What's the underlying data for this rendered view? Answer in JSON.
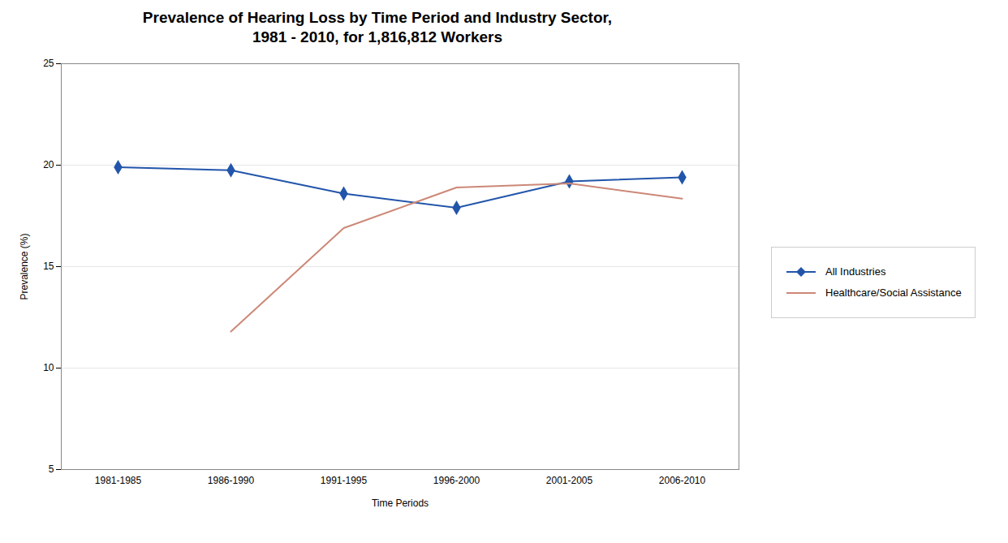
{
  "chart_data": {
    "type": "line",
    "title": "Prevalence of Hearing Loss by Time Period and Industry Sector,\n1981 - 2010, for 1,816,812 Workers",
    "x_label": "Time Periods",
    "y_label": "Prevalence (%)",
    "categories": [
      "1981-1985",
      "1986-1990",
      "1991-1995",
      "1996-2000",
      "2001-2005",
      "2006-2010"
    ],
    "series": [
      {
        "name": "All Industries",
        "color": "#2255AA",
        "marker": "diamond",
        "values": [
          19.9,
          19.75,
          18.6,
          17.9,
          19.2,
          19.4
        ]
      },
      {
        "name": "Healthcare/Social Assistance",
        "color": "#CC8877",
        "marker": "none",
        "values": [
          null,
          11.8,
          16.9,
          18.9,
          19.1,
          18.35
        ]
      }
    ],
    "ylim": [
      5,
      25
    ],
    "yticks": [
      5,
      10,
      15,
      20,
      25
    ],
    "grid": true,
    "legend": "right"
  }
}
